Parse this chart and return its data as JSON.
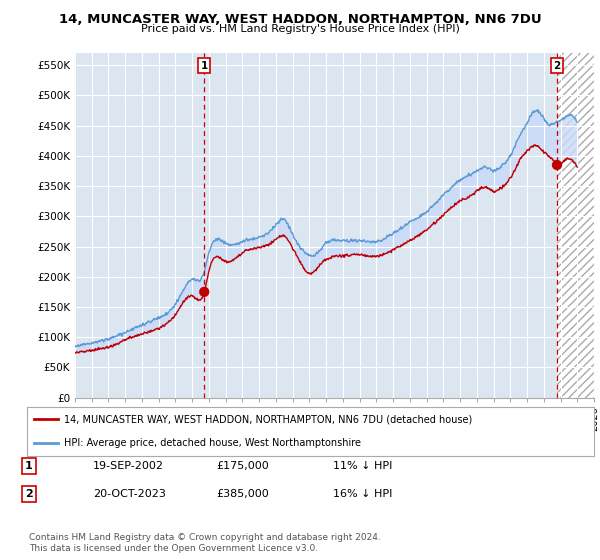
{
  "title": "14, MUNCASTER WAY, WEST HADDON, NORTHAMPTON, NN6 7DU",
  "subtitle": "Price paid vs. HM Land Registry's House Price Index (HPI)",
  "ylim": [
    0,
    570000
  ],
  "yticks": [
    0,
    50000,
    100000,
    150000,
    200000,
    250000,
    300000,
    350000,
    400000,
    450000,
    500000,
    550000
  ],
  "ytick_labels": [
    "£0",
    "£50K",
    "£100K",
    "£150K",
    "£200K",
    "£250K",
    "£300K",
    "£350K",
    "£400K",
    "£450K",
    "£500K",
    "£550K"
  ],
  "hpi_color": "#5b9bd5",
  "price_color": "#c00000",
  "dashed_color": "#cc0000",
  "background_color": "#ffffff",
  "plot_bg_color": "#dce6f1",
  "grid_color": "#ffffff",
  "fill_color": "#c9daf8",
  "legend_label_red": "14, MUNCASTER WAY, WEST HADDON, NORTHAMPTON, NN6 7DU (detached house)",
  "legend_label_blue": "HPI: Average price, detached house, West Northamptonshire",
  "transaction1_date": "19-SEP-2002",
  "transaction1_price": "£175,000",
  "transaction1_hpi": "11% ↓ HPI",
  "transaction2_date": "20-OCT-2023",
  "transaction2_price": "£385,000",
  "transaction2_hpi": "16% ↓ HPI",
  "footer": "Contains HM Land Registry data © Crown copyright and database right 2024.\nThis data is licensed under the Open Government Licence v3.0.",
  "t1_x_year": 2002.72,
  "t1_y": 175000,
  "t2_x_year": 2023.79,
  "t2_y": 385000,
  "xlim_min": 1995,
  "xlim_max": 2026
}
